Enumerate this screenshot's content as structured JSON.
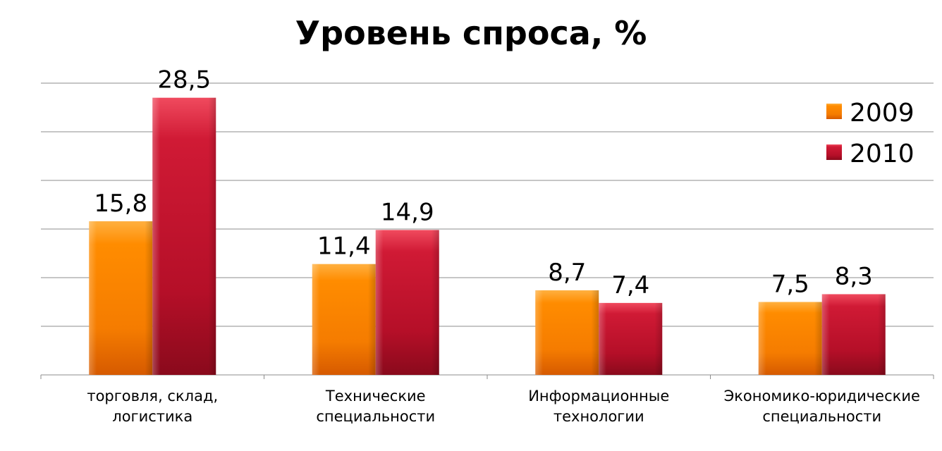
{
  "chart_data": {
    "type": "bar",
    "title": "Уровень спроса, %",
    "categories": [
      [
        "торговля, склад,",
        "логистика"
      ],
      [
        "Технические",
        "специальности"
      ],
      [
        "Информационные",
        "технологии"
      ],
      [
        "Экономико-юридические",
        "специальности"
      ]
    ],
    "series": [
      {
        "name": "2009",
        "values": [
          15.8,
          11.4,
          8.7,
          7.5
        ],
        "labels": [
          "15,8",
          "11,4",
          "8,7",
          "7,5"
        ],
        "color": "#ff8000"
      },
      {
        "name": "2010",
        "values": [
          28.5,
          14.9,
          7.4,
          8.3
        ],
        "labels": [
          "28,5",
          "14,9",
          "7,4",
          "8,3"
        ],
        "color": "#c8102e"
      }
    ],
    "ylim": [
      0,
      30
    ],
    "grid": true,
    "legend_position": "top-right",
    "xlabel": "",
    "ylabel": ""
  }
}
